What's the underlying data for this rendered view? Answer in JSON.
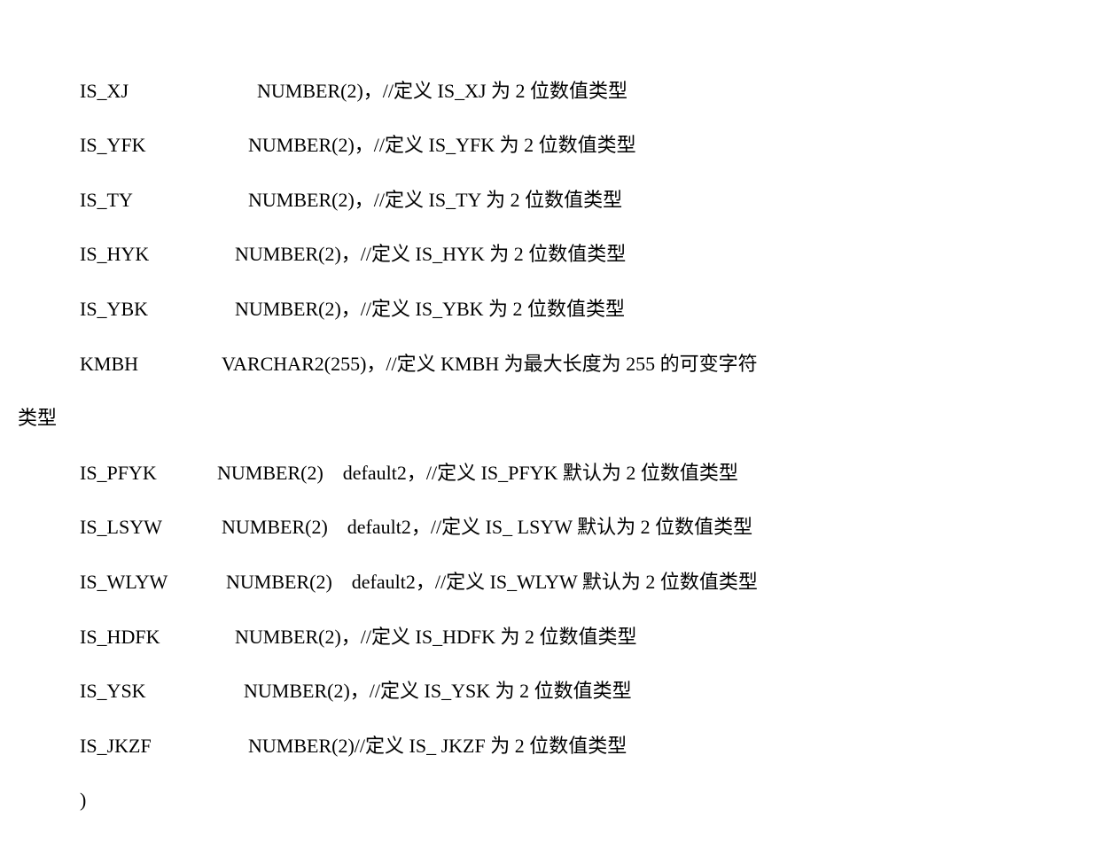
{
  "lines": [
    {
      "indent": true,
      "name": "IS_XJ",
      "nameWidth": "200px",
      "type": "NUMBER(2)，",
      "comment": "//定义 IS_XJ 为 2 位数值类型"
    },
    {
      "indent": true,
      "name": "IS_YFK",
      "nameWidth": "190px",
      "type": "NUMBER(2)，",
      "comment": "//定义 IS_YFK 为 2 位数值类型"
    },
    {
      "indent": true,
      "name": "IS_TY",
      "nameWidth": "190px",
      "type": "NUMBER(2)，",
      "comment": "//定义 IS_TY 为 2 位数值类型"
    },
    {
      "indent": true,
      "name": "IS_HYK",
      "nameWidth": "175px",
      "type": "NUMBER(2)，",
      "comment": "//定义 IS_HYK 为 2 位数值类型"
    },
    {
      "indent": true,
      "name": "IS_YBK",
      "nameWidth": "175px",
      "type": "NUMBER(2)，",
      "comment": "//定义 IS_YBK 为 2 位数值类型"
    },
    {
      "indent": true,
      "name": "KMBH",
      "nameWidth": "160px",
      "type": "VARCHAR2(255)，",
      "comment": "//定义 KMBH 为最大长度为 255 的可变字符",
      "wrap": "类型"
    },
    {
      "indent": true,
      "name": "IS_PFYK",
      "nameWidth": "155px",
      "type": "NUMBER(2)　default2，",
      "comment": "//定义 IS_PFYK 默认为 2 位数值类型"
    },
    {
      "indent": true,
      "name": "IS_LSYW",
      "nameWidth": "160px",
      "type": "NUMBER(2)　default2，",
      "comment": "//定义 IS_ LSYW 默认为 2 位数值类型"
    },
    {
      "indent": true,
      "name": "IS_WLYW",
      "nameWidth": "165px",
      "type": "NUMBER(2)　default2，",
      "comment": "//定义 IS_WLYW 默认为 2 位数值类型"
    },
    {
      "indent": true,
      "name": "IS_HDFK",
      "nameWidth": "175px",
      "type": "NUMBER(2)，",
      "comment": "//定义 IS_HDFK 为 2 位数值类型"
    },
    {
      "indent": true,
      "name": "IS_YSK",
      "nameWidth": "185px",
      "type": "NUMBER(2)，",
      "comment": "//定义 IS_YSK 为 2 位数值类型"
    },
    {
      "indent": true,
      "name": "IS_JKZF",
      "nameWidth": "190px",
      "type": "NUMBER(2) ",
      "comment": "//定义 IS_ JKZF 为 2 位数值类型"
    },
    {
      "indent": true,
      "name": ")",
      "nameWidth": "auto",
      "type": "",
      "comment": ""
    }
  ]
}
